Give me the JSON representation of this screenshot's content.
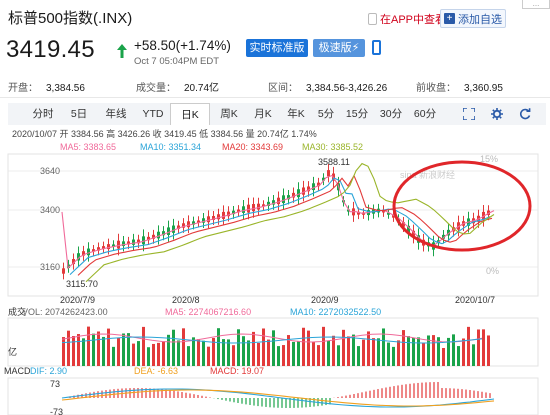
{
  "header": {
    "title": "标普500指数(.INX)",
    "app_link": "在APP中查看",
    "add_watch": "添加自选",
    "corner": "..."
  },
  "quote": {
    "price": "3419.45",
    "change": "+58.50(+1.74%)",
    "time": "Oct 7 05:04PM EDT",
    "realtime_btn": "实时标准版",
    "fast_btn": "极速版"
  },
  "stats": [
    {
      "label": "开盘：",
      "value": "3,384.56"
    },
    {
      "label": "成交量：",
      "value": "20.74亿"
    },
    {
      "label": "区间：",
      "value": "3,384.56-3,426.26"
    },
    {
      "label": "前收盘：",
      "value": "3,360.95"
    }
  ],
  "tabs": [
    "分时",
    "5日",
    "年线",
    "YTD",
    "日K",
    "周K",
    "月K",
    "年K",
    "5分",
    "15分",
    "30分",
    "60分"
  ],
  "active_tab": "日K",
  "chart": {
    "info_line": "2020/10/07   开 3384.56  高 3426.26  收 3419.45  低 3384.56  量 20.74亿  1.74%",
    "ma": [
      {
        "label": "MA5: 3383.65",
        "color": "#f06a9a"
      },
      {
        "label": "MA10: 3351.34",
        "color": "#2aa4d8"
      },
      {
        "label": "MA20: 3343.69",
        "color": "#e23a3a"
      },
      {
        "label": "MA30: 3385.52",
        "color": "#9ab52a"
      }
    ],
    "y_labels": [
      "3640",
      "3400",
      "3160"
    ],
    "pct_labels": [
      "15%",
      "0%"
    ],
    "high_label": "3588.11",
    "low_label": "3115.70",
    "x_labels": [
      "2020/7/9",
      "2020/8",
      "2020/9",
      "2020/10/7"
    ],
    "vol_title": "成交",
    "vol_unit": "亿",
    "vol_legend": [
      {
        "label": "VOL: 2074262423.00",
        "color": "#666"
      },
      {
        "label": "MA5: 2274067216.60",
        "color": "#f06a9a"
      },
      {
        "label": "MA10: 2272032522.50",
        "color": "#2aa4d8"
      }
    ],
    "macd_title": "MACD",
    "macd_legend": [
      {
        "label": "DIF: 2.90",
        "color": "#2aa4d8"
      },
      {
        "label": "DEA: -6.63",
        "color": "#f0a020"
      },
      {
        "label": "MACD: 19.07",
        "color": "#e23a3a"
      }
    ],
    "macd_top": "73",
    "macd_bottom": "-73",
    "watermark": "sina 新浪财经",
    "colors": {
      "up": "#e23a3a",
      "down": "#1aa34a",
      "circle": "#e0262a"
    }
  }
}
